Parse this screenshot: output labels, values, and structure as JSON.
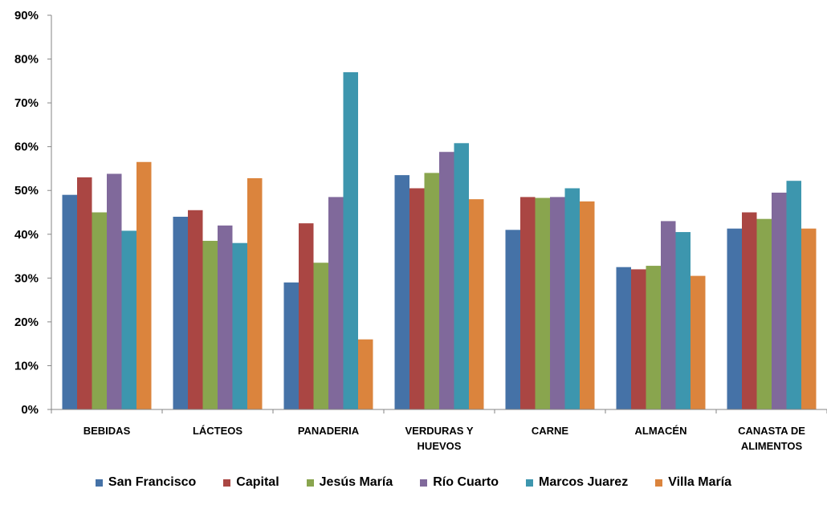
{
  "chart_data": {
    "type": "bar",
    "categories": [
      [
        "BEBIDAS"
      ],
      [
        "LÁCTEOS"
      ],
      [
        "PANADERIA"
      ],
      [
        "VERDURAS Y",
        "HUEVOS"
      ],
      [
        "CARNE"
      ],
      [
        "ALMACÉN"
      ],
      [
        "CANASTA DE",
        "ALIMENTOS"
      ]
    ],
    "series": [
      {
        "name": "San Francisco",
        "color": "#4572A7",
        "values": [
          49,
          44,
          29,
          53.5,
          41,
          32.5,
          41.3
        ]
      },
      {
        "name": "Capital",
        "color": "#AA4643",
        "values": [
          53,
          45.5,
          42.5,
          50.5,
          48.5,
          32,
          45
        ]
      },
      {
        "name": "Jesús María",
        "color": "#89A54E",
        "values": [
          45,
          38.5,
          33.5,
          54,
          48.3,
          32.8,
          43.5
        ]
      },
      {
        "name": "Río Cuarto",
        "color": "#80699B",
        "values": [
          53.8,
          42,
          48.5,
          58.8,
          48.5,
          43,
          49.5
        ]
      },
      {
        "name": "Marcos Juarez",
        "color": "#3D96AE",
        "values": [
          40.8,
          38,
          77,
          60.8,
          50.5,
          40.5,
          52.2
        ]
      },
      {
        "name": "Villa María",
        "color": "#DB843D",
        "values": [
          56.5,
          52.8,
          16,
          48,
          47.5,
          30.5,
          41.3
        ]
      }
    ],
    "yticks": [
      "0%",
      "10%",
      "20%",
      "30%",
      "40%",
      "50%",
      "60%",
      "70%",
      "80%",
      "90%"
    ],
    "ylim": [
      0,
      90
    ],
    "title": "",
    "xlabel": "",
    "ylabel": "",
    "grid": false,
    "legend_position": "bottom"
  }
}
